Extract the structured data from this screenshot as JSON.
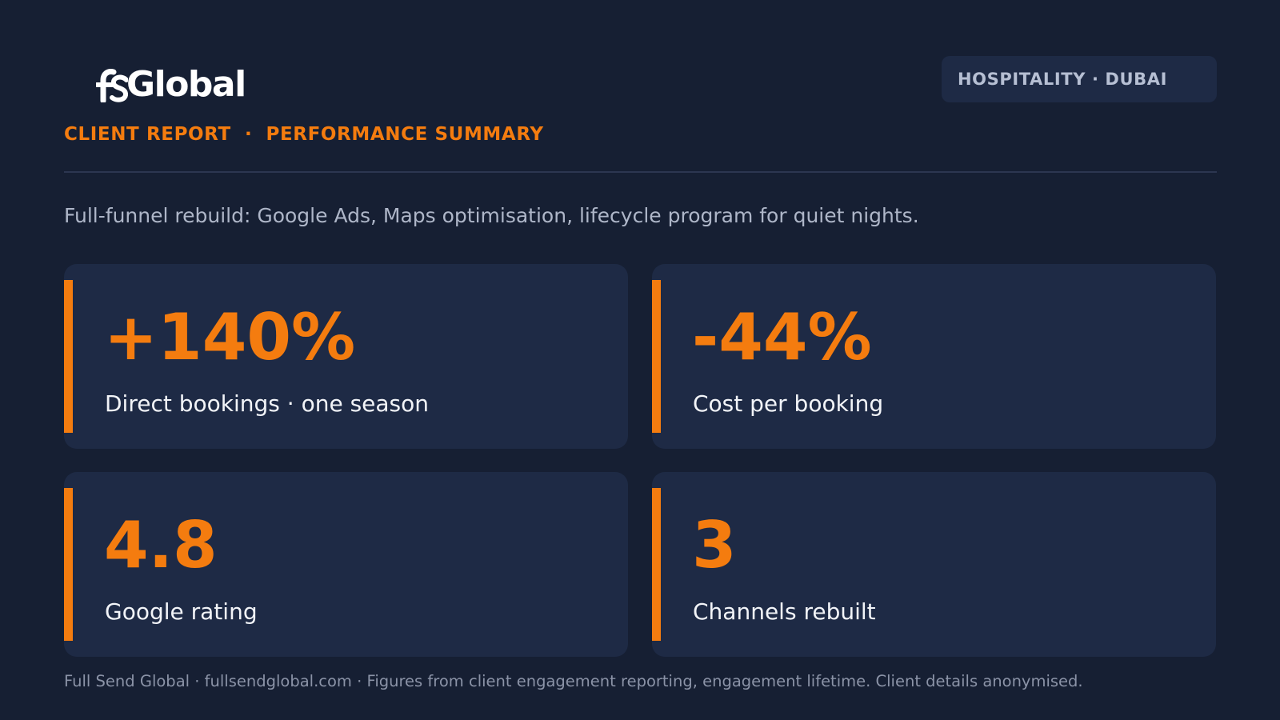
{
  "brand": {
    "logo_icon": "fs-monogram-logo",
    "logo_text": "Global"
  },
  "badge": "HOSPITALITY · DUBAI",
  "subtitle": "CLIENT REPORT  ·  PERFORMANCE SUMMARY",
  "description": "Full-funnel rebuild: Google Ads, Maps optimisation, lifecycle program for quiet nights.",
  "metrics": [
    {
      "value": "+140%",
      "label": "Direct bookings · one season"
    },
    {
      "value": "-44%",
      "label": "Cost per booking"
    },
    {
      "value": "4.8",
      "label": "Google rating"
    },
    {
      "value": "3",
      "label": "Channels rebuilt"
    }
  ],
  "footer": "Full Send Global · fullsendglobal.com · Figures from client engagement reporting, engagement lifetime. Client details anonymised.",
  "colors": {
    "background": "#161f33",
    "card": "#1e2a45",
    "accent": "#f47c0f",
    "text_primary": "#f2f4f8",
    "text_muted": "#aeb6c8"
  }
}
